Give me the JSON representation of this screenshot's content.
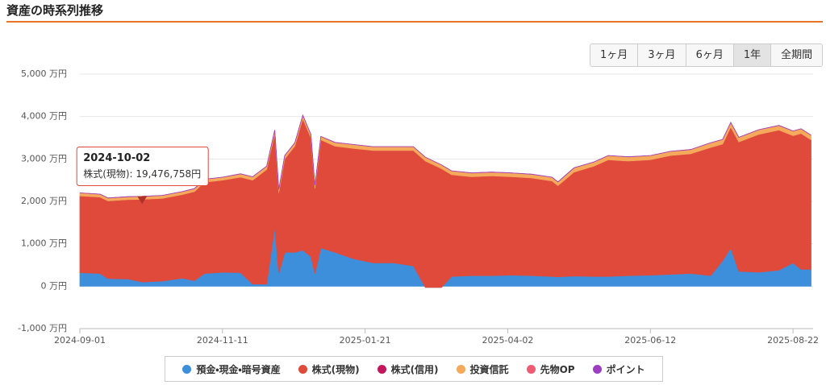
{
  "header": {
    "title": "資産の時系列推移"
  },
  "range_buttons": {
    "labels": [
      "1ヶ月",
      "3ヶ月",
      "6ヶ月",
      "1年",
      "全期間"
    ],
    "active_index": 3
  },
  "chart_data": {
    "type": "area",
    "stacked": true,
    "x": [
      "2024-09-01",
      "2024-09-11",
      "2024-09-15",
      "2024-09-25",
      "2024-10-02",
      "2024-10-12",
      "2024-10-22",
      "2024-10-28",
      "2024-11-02",
      "2024-11-11",
      "2024-11-20",
      "2024-11-26",
      "2024-12-03",
      "2024-12-07",
      "2024-12-09",
      "2024-12-12",
      "2024-12-17",
      "2024-12-21",
      "2024-12-25",
      "2024-12-27",
      "2024-12-30",
      "2025-01-06",
      "2025-01-15",
      "2025-01-25",
      "2025-02-04",
      "2025-02-14",
      "2025-02-20",
      "2025-02-28",
      "2025-03-05",
      "2025-03-15",
      "2025-03-25",
      "2025-04-04",
      "2025-04-14",
      "2025-04-24",
      "2025-04-27",
      "2025-05-05",
      "2025-05-15",
      "2025-05-22",
      "2025-06-01",
      "2025-06-12",
      "2025-06-22",
      "2025-07-02",
      "2025-07-12",
      "2025-07-18",
      "2025-07-22",
      "2025-07-26",
      "2025-08-05",
      "2025-08-15",
      "2025-08-22",
      "2025-08-26",
      "2025-08-31"
    ],
    "xlim": [
      "2024-09-01",
      "2025-09-01"
    ],
    "xticks": [
      "2024-09-01",
      "2024-11-11",
      "2025-01-21",
      "2025-04-02",
      "2025-06-12",
      "2025-08-22"
    ],
    "ylim": [
      -1000,
      5000
    ],
    "yticks": [
      {
        "value": -1000,
        "label": "-1,000 万円"
      },
      {
        "value": 0,
        "label": "0 万円"
      },
      {
        "value": 1000,
        "label": "1,000 万円"
      },
      {
        "value": 2000,
        "label": "2,000 万円"
      },
      {
        "value": 3000,
        "label": "3,000 万円"
      },
      {
        "value": 4000,
        "label": "4,000 万円"
      },
      {
        "value": 5000,
        "label": "5,000 万円"
      }
    ],
    "grid": true,
    "series": [
      {
        "name": "預金・現金・暗号資産",
        "color": "#3d8fdc",
        "values": [
          320,
          300,
          180,
          170,
          100,
          120,
          190,
          130,
          300,
          330,
          320,
          50,
          50,
          1400,
          300,
          800,
          800,
          850,
          700,
          300,
          900,
          800,
          650,
          550,
          550,
          480,
          -30,
          -30,
          230,
          250,
          250,
          260,
          250,
          230,
          220,
          240,
          230,
          230,
          250,
          260,
          280,
          300,
          250,
          600,
          900,
          350,
          330,
          380,
          550,
          400,
          400
        ]
      },
      {
        "name": "株式(現物)",
        "color": "#e04a3a",
        "values": [
          1810,
          1800,
          1830,
          1870,
          1947.6758,
          1950,
          1970,
          2100,
          2150,
          2170,
          2250,
          2450,
          2700,
          2200,
          1900,
          2200,
          2500,
          3100,
          2800,
          2000,
          2550,
          2500,
          2600,
          2650,
          2650,
          2720,
          2980,
          2800,
          2400,
          2330,
          2350,
          2320,
          2300,
          2250,
          2150,
          2450,
          2600,
          2750,
          2700,
          2720,
          2800,
          2820,
          3020,
          2750,
          2850,
          3050,
          3250,
          3300,
          3000,
          3200,
          3050
        ]
      },
      {
        "name": "株式(信用)",
        "color": "#c2185b",
        "values": [
          0,
          0,
          0,
          0,
          0,
          0,
          0,
          0,
          0,
          0,
          0,
          0,
          0,
          0,
          0,
          0,
          0,
          0,
          0,
          0,
          0,
          0,
          0,
          0,
          0,
          0,
          0,
          0,
          0,
          0,
          0,
          0,
          0,
          0,
          0,
          0,
          0,
          0,
          0,
          0,
          0,
          0,
          0,
          0,
          0,
          0,
          0,
          0,
          0,
          0,
          0
        ]
      },
      {
        "name": "投資信託",
        "color": "#f5a95a",
        "values": [
          70,
          70,
          70,
          70,
          70,
          70,
          70,
          70,
          70,
          70,
          80,
          80,
          80,
          80,
          80,
          80,
          80,
          80,
          80,
          80,
          80,
          90,
          90,
          90,
          90,
          90,
          90,
          90,
          90,
          90,
          90,
          90,
          90,
          90,
          90,
          100,
          100,
          100,
          100,
          100,
          100,
          100,
          110,
          110,
          110,
          110,
          110,
          110,
          110,
          110,
          110
        ]
      },
      {
        "name": "先物OP",
        "color": "#ef5b72",
        "values": [
          0,
          0,
          0,
          0,
          0,
          0,
          0,
          0,
          0,
          0,
          0,
          0,
          0,
          0,
          0,
          0,
          0,
          0,
          0,
          0,
          0,
          0,
          0,
          0,
          0,
          0,
          0,
          0,
          0,
          0,
          0,
          0,
          0,
          0,
          0,
          0,
          0,
          0,
          0,
          0,
          0,
          0,
          0,
          0,
          0,
          0,
          0,
          0,
          0,
          0,
          0
        ]
      },
      {
        "name": "ポイント",
        "color": "#9c3fc2",
        "values": [
          0,
          0,
          0,
          0,
          0,
          0,
          0,
          0,
          0,
          0,
          0,
          0,
          0,
          0,
          0,
          0,
          0,
          0,
          0,
          0,
          0,
          0,
          0,
          0,
          0,
          0,
          0,
          0,
          0,
          0,
          0,
          0,
          0,
          0,
          0,
          0,
          0,
          0,
          0,
          0,
          0,
          0,
          0,
          0,
          0,
          0,
          0,
          0,
          0,
          0,
          0
        ]
      }
    ],
    "tooltip": {
      "date": "2024-10-02",
      "text": "株式(現物): 19,476,758円"
    }
  }
}
